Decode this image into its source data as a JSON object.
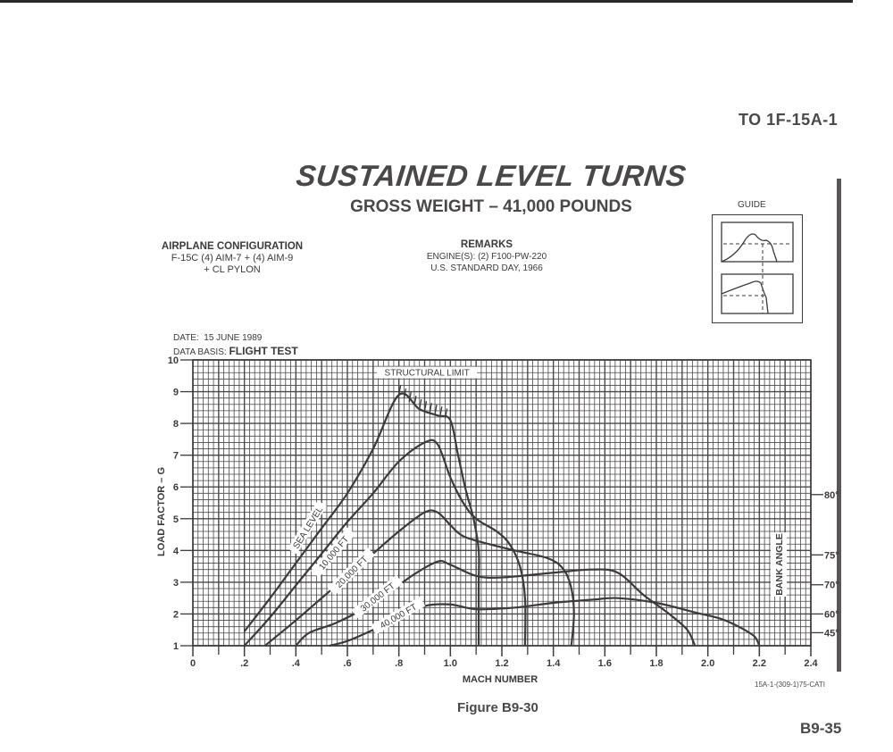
{
  "page": {
    "doc_id": "TO 1F-15A-1",
    "page_number": "B9-35",
    "figure_caption": "Figure B9-30",
    "catalog_id": "15A-1-(309-1)75-CATI"
  },
  "header": {
    "title": "SUSTAINED LEVEL TURNS",
    "subtitle": "GROSS WEIGHT – 41,000 POUNDS"
  },
  "configuration": {
    "heading": "AIRPLANE CONFIGURATION",
    "line1": "F-15C (4) AIM-7 + (4) AIM-9",
    "line2": "+ CL PYLON"
  },
  "remarks": {
    "heading": "REMARKS",
    "line1": "ENGINE(S): (2) F100-PW-220",
    "line2": "U.S. STANDARD DAY, 1966"
  },
  "guide": {
    "label": "GUIDE"
  },
  "info": {
    "date_label": "DATE:",
    "date_value": "15 JUNE 1989",
    "basis_label": "DATA BASIS:",
    "basis_value": "FLIGHT TEST"
  },
  "colors": {
    "ink": "#3c3a3b",
    "grid": "#4a4748",
    "paper": "#ffffff"
  },
  "chart_data": {
    "type": "line",
    "title": "SUSTAINED LEVEL TURNS",
    "subtitle": "GROSS WEIGHT – 41,000 POUNDS",
    "xlabel": "MACH NUMBER",
    "ylabel": "LOAD FACTOR – G",
    "y2label": "BANK ANGLE",
    "xlim": [
      0,
      2.4
    ],
    "ylim": [
      1,
      10
    ],
    "grid": true,
    "x_ticks": [
      "0",
      ".2",
      ".4",
      ".6",
      ".8",
      "1.0",
      "1.2",
      "1.4",
      "1.6",
      "1.8",
      "2.0",
      "2.2",
      "2.4"
    ],
    "x_tick_values": [
      0,
      0.2,
      0.4,
      0.6,
      0.8,
      1.0,
      1.2,
      1.4,
      1.6,
      1.8,
      2.0,
      2.2,
      2.4
    ],
    "y_ticks": [
      "1",
      "2",
      "3",
      "4",
      "5",
      "6",
      "7",
      "8",
      "9",
      "10"
    ],
    "bank_angle_ticks": [
      {
        "label": "80°",
        "g": 5.76
      },
      {
        "label": "75°",
        "g": 3.86
      },
      {
        "label": "70°",
        "g": 2.92
      },
      {
        "label": "60°",
        "g": 2.0
      },
      {
        "label": "45°",
        "g": 1.41
      }
    ],
    "annotations": [
      {
        "text": "STRUCTURAL LIMIT",
        "x": 0.93,
        "y": 9.0
      }
    ],
    "series": [
      {
        "name": "SEA LEVEL",
        "label_pos": [
          0.45,
          4.7
        ],
        "label_angle": -58,
        "points": [
          [
            0.2,
            1.45
          ],
          [
            0.3,
            2.5
          ],
          [
            0.4,
            3.6
          ],
          [
            0.5,
            4.7
          ],
          [
            0.6,
            5.8
          ],
          [
            0.7,
            7.2
          ],
          [
            0.8,
            8.9
          ],
          [
            0.88,
            8.45
          ],
          [
            0.95,
            8.25
          ],
          [
            1.0,
            8.1
          ],
          [
            1.03,
            7.0
          ],
          [
            1.06,
            5.9
          ],
          [
            1.09,
            5.0
          ],
          [
            1.11,
            4.0
          ],
          [
            1.11,
            3.0
          ],
          [
            1.11,
            2.0
          ],
          [
            1.11,
            1.0
          ]
        ]
      },
      {
        "name": "10,000 FT",
        "label_pos": [
          0.55,
          3.9
        ],
        "label_angle": -50,
        "points": [
          [
            0.2,
            1.0
          ],
          [
            0.3,
            1.9
          ],
          [
            0.4,
            2.9
          ],
          [
            0.5,
            3.9
          ],
          [
            0.6,
            4.9
          ],
          [
            0.7,
            5.8
          ],
          [
            0.8,
            6.8
          ],
          [
            0.9,
            7.4
          ],
          [
            0.95,
            7.35
          ],
          [
            1.0,
            6.3
          ],
          [
            1.05,
            5.5
          ],
          [
            1.1,
            5.0
          ],
          [
            1.18,
            4.6
          ],
          [
            1.23,
            4.2
          ],
          [
            1.27,
            3.5
          ],
          [
            1.29,
            2.5
          ],
          [
            1.29,
            1.0
          ]
        ]
      },
      {
        "name": "20,000 FT",
        "label_pos": [
          0.62,
          3.3
        ],
        "label_angle": -45,
        "points": [
          [
            0.28,
            1.0
          ],
          [
            0.4,
            1.8
          ],
          [
            0.5,
            2.5
          ],
          [
            0.6,
            3.2
          ],
          [
            0.7,
            3.9
          ],
          [
            0.8,
            4.6
          ],
          [
            0.9,
            5.2
          ],
          [
            0.95,
            5.2
          ],
          [
            1.0,
            4.8
          ],
          [
            1.05,
            4.45
          ],
          [
            1.15,
            4.2
          ],
          [
            1.25,
            4.0
          ],
          [
            1.38,
            3.75
          ],
          [
            1.44,
            3.4
          ],
          [
            1.47,
            2.8
          ],
          [
            1.48,
            2.0
          ],
          [
            1.47,
            1.0
          ]
        ]
      },
      {
        "name": "30,000 FT",
        "label_pos": [
          0.72,
          2.5
        ],
        "label_angle": -38,
        "points": [
          [
            0.4,
            1.0
          ],
          [
            0.45,
            1.4
          ],
          [
            0.55,
            1.7
          ],
          [
            0.65,
            2.1
          ],
          [
            0.75,
            2.6
          ],
          [
            0.85,
            3.2
          ],
          [
            0.95,
            3.65
          ],
          [
            1.0,
            3.55
          ],
          [
            1.1,
            3.2
          ],
          [
            1.2,
            3.15
          ],
          [
            1.4,
            3.3
          ],
          [
            1.55,
            3.4
          ],
          [
            1.65,
            3.3
          ],
          [
            1.75,
            2.6
          ],
          [
            1.85,
            2.0
          ],
          [
            1.92,
            1.5
          ],
          [
            1.95,
            1.0
          ]
        ]
      },
      {
        "name": "40,000 FT",
        "label_pos": [
          0.8,
          1.9
        ],
        "label_angle": -30,
        "points": [
          [
            0.53,
            1.0
          ],
          [
            0.6,
            1.15
          ],
          [
            0.7,
            1.5
          ],
          [
            0.8,
            1.9
          ],
          [
            0.9,
            2.25
          ],
          [
            1.0,
            2.3
          ],
          [
            1.1,
            2.15
          ],
          [
            1.25,
            2.2
          ],
          [
            1.4,
            2.35
          ],
          [
            1.55,
            2.45
          ],
          [
            1.65,
            2.5
          ],
          [
            1.8,
            2.35
          ],
          [
            1.95,
            2.05
          ],
          [
            2.05,
            1.85
          ],
          [
            2.12,
            1.6
          ],
          [
            2.18,
            1.3
          ],
          [
            2.2,
            1.0
          ]
        ]
      }
    ]
  }
}
